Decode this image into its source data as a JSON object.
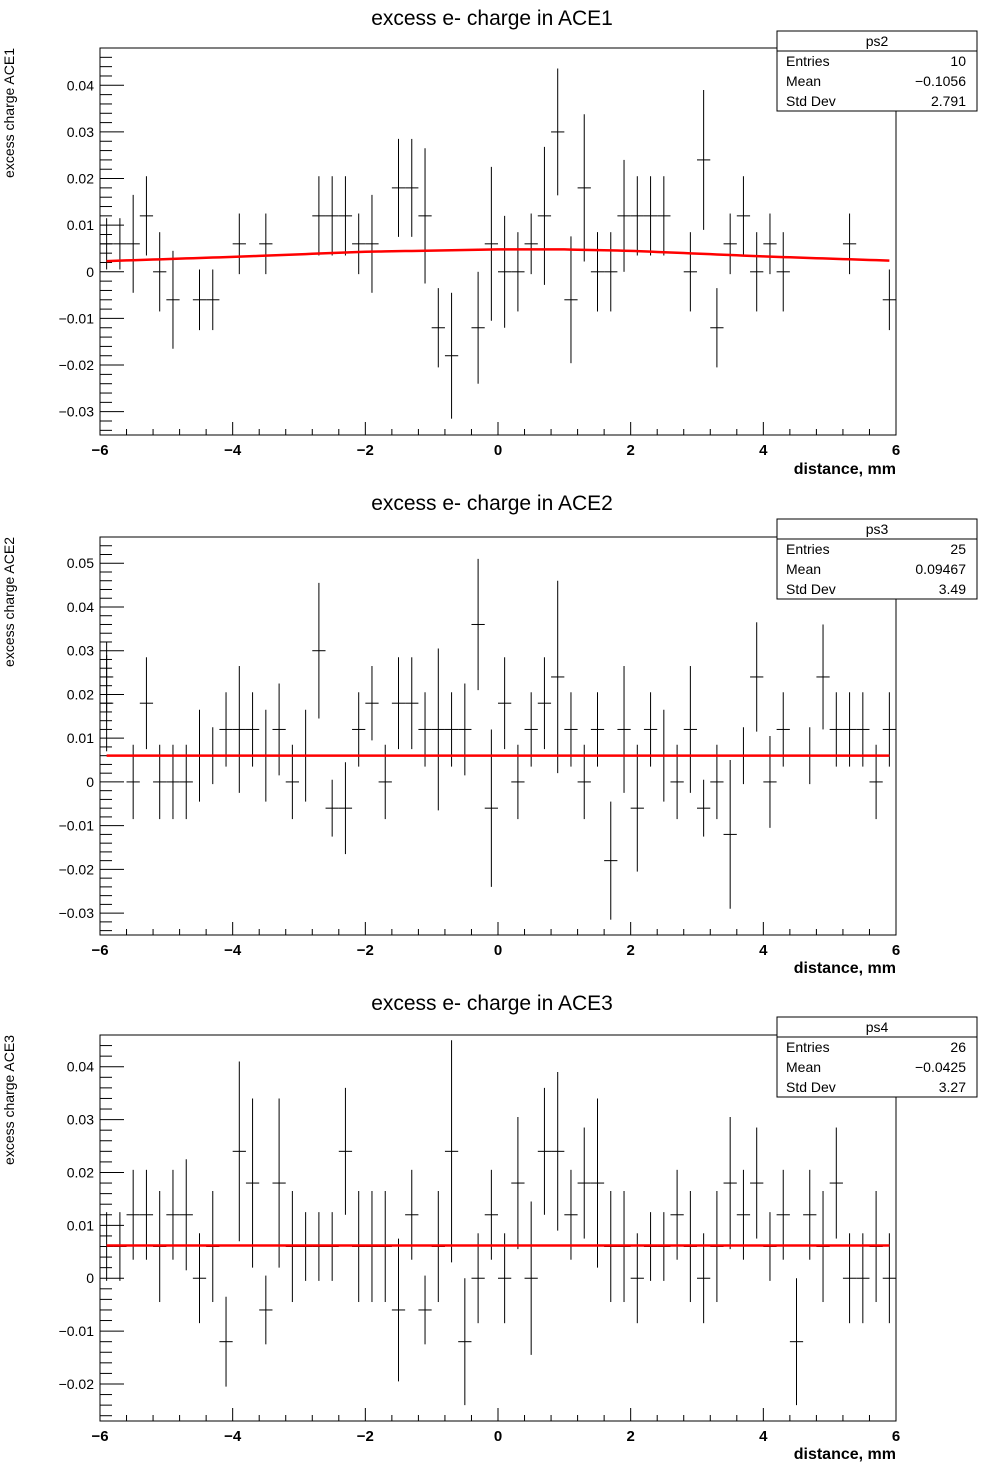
{
  "chart_data": [
    {
      "type": "scatter",
      "title": "excess e- charge in ACE1",
      "xlabel": "distance, mm",
      "ylabel": "excess charge ACE1",
      "xlim": [
        -6,
        6
      ],
      "ylim": [
        -0.035,
        0.048
      ],
      "x_ticks": [
        -6,
        -4,
        -2,
        0,
        2,
        4,
        6
      ],
      "x_tick_labels": [
        "−6",
        "−4",
        "−2",
        "0",
        "2",
        "4",
        "6"
      ],
      "y_ticks": [
        -0.03,
        -0.02,
        -0.01,
        0,
        0.01,
        0.02,
        0.03,
        0.04
      ],
      "y_tick_labels": [
        "−0.03",
        "−0.02",
        "−0.01",
        "0",
        "0.01",
        "0.02",
        "0.03",
        "0.04"
      ],
      "grid": false,
      "legend_position": "top-right",
      "stats": {
        "name": "ps2",
        "rows": [
          {
            "label": "Entries",
            "value": "10"
          },
          {
            "label": "Mean",
            "value": "−0.1056"
          },
          {
            "label": "Std Dev",
            "value": "2.791"
          }
        ]
      },
      "fit": {
        "color": "#ff0000",
        "x": [
          -5.9,
          -4,
          -2,
          0,
          1,
          2,
          4,
          5.9
        ],
        "y": [
          0.0023,
          0.0032,
          0.0043,
          0.0048,
          0.0048,
          0.0045,
          0.0033,
          0.0024
        ]
      },
      "points": [
        {
          "x": -5.9,
          "y": 0.006,
          "err": 0.0055
        },
        {
          "x": -5.7,
          "y": 0.006,
          "err": 0.0055
        },
        {
          "x": -5.5,
          "y": 0.006,
          "err": 0.0105
        },
        {
          "x": -5.3,
          "y": 0.012,
          "err": 0.0085
        },
        {
          "x": -5.1,
          "y": 0.0,
          "err": 0.0085
        },
        {
          "x": -4.9,
          "y": -0.006,
          "err": 0.0105
        },
        {
          "x": -4.5,
          "y": -0.006,
          "err": 0.0065
        },
        {
          "x": -4.3,
          "y": -0.006,
          "err": 0.0065
        },
        {
          "x": -3.9,
          "y": 0.006,
          "err": 0.0065
        },
        {
          "x": -3.5,
          "y": 0.006,
          "err": 0.0065
        },
        {
          "x": -2.7,
          "y": 0.012,
          "err": 0.0085
        },
        {
          "x": -2.5,
          "y": 0.012,
          "err": 0.0085
        },
        {
          "x": -2.3,
          "y": 0.012,
          "err": 0.0085
        },
        {
          "x": -2.1,
          "y": 0.006,
          "err": 0.0065
        },
        {
          "x": -1.9,
          "y": 0.006,
          "err": 0.0105
        },
        {
          "x": -1.5,
          "y": 0.018,
          "err": 0.0105
        },
        {
          "x": -1.3,
          "y": 0.018,
          "err": 0.0105
        },
        {
          "x": -1.1,
          "y": 0.012,
          "err": 0.0145
        },
        {
          "x": -0.9,
          "y": -0.012,
          "err": 0.0085
        },
        {
          "x": -0.7,
          "y": -0.018,
          "err": 0.0135
        },
        {
          "x": -0.3,
          "y": -0.012,
          "err": 0.012
        },
        {
          "x": -0.1,
          "y": 0.006,
          "err": 0.0165
        },
        {
          "x": 0.1,
          "y": 0.0,
          "err": 0.012
        },
        {
          "x": 0.3,
          "y": 0.0,
          "err": 0.0085
        },
        {
          "x": 0.5,
          "y": 0.006,
          "err": 0.0065
        },
        {
          "x": 0.7,
          "y": 0.012,
          "err": 0.0148
        },
        {
          "x": 0.9,
          "y": 0.03,
          "err": 0.0136
        },
        {
          "x": 1.1,
          "y": -0.006,
          "err": 0.0136
        },
        {
          "x": 1.3,
          "y": 0.018,
          "err": 0.0158
        },
        {
          "x": 1.5,
          "y": 0.0,
          "err": 0.0085
        },
        {
          "x": 1.7,
          "y": 0.0,
          "err": 0.0085
        },
        {
          "x": 1.9,
          "y": 0.012,
          "err": 0.012
        },
        {
          "x": 2.1,
          "y": 0.012,
          "err": 0.0085
        },
        {
          "x": 2.3,
          "y": 0.012,
          "err": 0.0085
        },
        {
          "x": 2.5,
          "y": 0.012,
          "err": 0.0085
        },
        {
          "x": 2.9,
          "y": 0.0,
          "err": 0.0085
        },
        {
          "x": 3.1,
          "y": 0.024,
          "err": 0.015
        },
        {
          "x": 3.3,
          "y": -0.012,
          "err": 0.0085
        },
        {
          "x": 3.5,
          "y": 0.006,
          "err": 0.0065
        },
        {
          "x": 3.7,
          "y": 0.012,
          "err": 0.0085
        },
        {
          "x": 3.9,
          "y": 0.0,
          "err": 0.0085
        },
        {
          "x": 4.1,
          "y": 0.006,
          "err": 0.0065
        },
        {
          "x": 4.3,
          "y": 0.0,
          "err": 0.0085
        },
        {
          "x": 5.3,
          "y": 0.006,
          "err": 0.0065
        },
        {
          "x": 5.9,
          "y": -0.006,
          "err": 0.0065
        }
      ]
    },
    {
      "type": "scatter",
      "title": "excess e- charge in ACE2",
      "xlabel": "distance, mm",
      "ylabel": "excess charge ACE2",
      "xlim": [
        -6,
        6
      ],
      "ylim": [
        -0.035,
        0.056
      ],
      "x_ticks": [
        -6,
        -4,
        -2,
        0,
        2,
        4,
        6
      ],
      "x_tick_labels": [
        "−6",
        "−4",
        "−2",
        "0",
        "2",
        "4",
        "6"
      ],
      "y_ticks": [
        -0.03,
        -0.02,
        -0.01,
        0,
        0.01,
        0.02,
        0.03,
        0.04,
        0.05
      ],
      "y_tick_labels": [
        "−0.03",
        "−0.02",
        "−0.01",
        "0",
        "0.01",
        "0.02",
        "0.03",
        "0.04",
        "0.05"
      ],
      "grid": false,
      "legend_position": "top-right",
      "stats": {
        "name": "ps3",
        "rows": [
          {
            "label": "Entries",
            "value": "25"
          },
          {
            "label": "Mean",
            "value": "0.09467"
          },
          {
            "label": "Std Dev",
            "value": "3.49"
          }
        ]
      },
      "fit": {
        "color": "#ff0000",
        "x": [
          -5.9,
          5.9
        ],
        "y": [
          0.006,
          0.006
        ]
      },
      "points": [
        {
          "x": -5.9,
          "y": 0.018,
          "err": 0.011
        },
        {
          "x": -5.9,
          "y": 0.024,
          "err": 0.008
        },
        {
          "x": -5.5,
          "y": 0.0,
          "err": 0.0085
        },
        {
          "x": -5.3,
          "y": 0.018,
          "err": 0.0105
        },
        {
          "x": -5.1,
          "y": 0.0,
          "err": 0.0085
        },
        {
          "x": -4.9,
          "y": 0.0,
          "err": 0.0085
        },
        {
          "x": -4.7,
          "y": 0.0,
          "err": 0.0085
        },
        {
          "x": -4.5,
          "y": 0.006,
          "err": 0.0105
        },
        {
          "x": -4.3,
          "y": 0.006,
          "err": 0.0065
        },
        {
          "x": -4.1,
          "y": 0.012,
          "err": 0.0085
        },
        {
          "x": -3.9,
          "y": 0.012,
          "err": 0.0145
        },
        {
          "x": -3.7,
          "y": 0.012,
          "err": 0.0085
        },
        {
          "x": -3.5,
          "y": 0.006,
          "err": 0.0105
        },
        {
          "x": -3.3,
          "y": 0.012,
          "err": 0.0105
        },
        {
          "x": -3.1,
          "y": 0.0,
          "err": 0.0085
        },
        {
          "x": -2.9,
          "y": 0.006,
          "err": 0.0105
        },
        {
          "x": -2.7,
          "y": 0.03,
          "err": 0.0155
        },
        {
          "x": -2.5,
          "y": -0.006,
          "err": 0.0065
        },
        {
          "x": -2.3,
          "y": -0.006,
          "err": 0.0105
        },
        {
          "x": -2.1,
          "y": 0.012,
          "err": 0.0085
        },
        {
          "x": -1.9,
          "y": 0.018,
          "err": 0.0085
        },
        {
          "x": -1.7,
          "y": 0.0,
          "err": 0.0085
        },
        {
          "x": -1.5,
          "y": 0.018,
          "err": 0.0105
        },
        {
          "x": -1.3,
          "y": 0.018,
          "err": 0.0105
        },
        {
          "x": -1.1,
          "y": 0.012,
          "err": 0.0085
        },
        {
          "x": -0.9,
          "y": 0.012,
          "err": 0.0185
        },
        {
          "x": -0.7,
          "y": 0.012,
          "err": 0.0085
        },
        {
          "x": -0.5,
          "y": 0.012,
          "err": 0.0105
        },
        {
          "x": -0.3,
          "y": 0.036,
          "err": 0.015
        },
        {
          "x": -0.1,
          "y": -0.006,
          "err": 0.018
        },
        {
          "x": 0.1,
          "y": 0.018,
          "err": 0.0105
        },
        {
          "x": 0.3,
          "y": 0.0,
          "err": 0.0085
        },
        {
          "x": 0.5,
          "y": 0.012,
          "err": 0.0085
        },
        {
          "x": 0.7,
          "y": 0.018,
          "err": 0.0105
        },
        {
          "x": 0.9,
          "y": 0.024,
          "err": 0.022
        },
        {
          "x": 1.1,
          "y": 0.012,
          "err": 0.0085
        },
        {
          "x": 1.3,
          "y": 0.0,
          "err": 0.0085
        },
        {
          "x": 1.5,
          "y": 0.012,
          "err": 0.0085
        },
        {
          "x": 1.7,
          "y": -0.018,
          "err": 0.0135
        },
        {
          "x": 1.9,
          "y": 0.012,
          "err": 0.0145
        },
        {
          "x": 2.1,
          "y": -0.006,
          "err": 0.0145
        },
        {
          "x": 2.3,
          "y": 0.012,
          "err": 0.0085
        },
        {
          "x": 2.5,
          "y": 0.006,
          "err": 0.0105
        },
        {
          "x": 2.7,
          "y": 0.0,
          "err": 0.0085
        },
        {
          "x": 2.9,
          "y": 0.012,
          "err": 0.0145
        },
        {
          "x": 3.1,
          "y": -0.006,
          "err": 0.0065
        },
        {
          "x": 3.3,
          "y": 0.0,
          "err": 0.0085
        },
        {
          "x": 3.5,
          "y": -0.012,
          "err": 0.017
        },
        {
          "x": 3.7,
          "y": 0.006,
          "err": 0.0065
        },
        {
          "x": 3.9,
          "y": 0.024,
          "err": 0.0125
        },
        {
          "x": 4.1,
          "y": 0.0,
          "err": 0.0105
        },
        {
          "x": 4.3,
          "y": 0.012,
          "err": 0.0085
        },
        {
          "x": 4.7,
          "y": 0.006,
          "err": 0.0065
        },
        {
          "x": 4.9,
          "y": 0.024,
          "err": 0.012
        },
        {
          "x": 5.1,
          "y": 0.012,
          "err": 0.0085
        },
        {
          "x": 5.3,
          "y": 0.012,
          "err": 0.0085
        },
        {
          "x": 5.5,
          "y": 0.012,
          "err": 0.0085
        },
        {
          "x": 5.7,
          "y": 0.0,
          "err": 0.0085
        },
        {
          "x": 5.9,
          "y": 0.012,
          "err": 0.0085
        }
      ]
    },
    {
      "type": "scatter",
      "title": "excess e- charge in ACE3",
      "xlabel": "distance, mm",
      "ylabel": "excess charge  ACE3",
      "xlim": [
        -6,
        6
      ],
      "ylim": [
        -0.027,
        0.046
      ],
      "x_ticks": [
        -6,
        -4,
        -2,
        0,
        2,
        4,
        6
      ],
      "x_tick_labels": [
        "−6",
        "−4",
        "−2",
        "0",
        "2",
        "4",
        "6"
      ],
      "y_ticks": [
        -0.02,
        -0.01,
        0,
        0.01,
        0.02,
        0.03,
        0.04
      ],
      "y_tick_labels": [
        "−0.02",
        "−0.01",
        "0",
        "0.01",
        "0.02",
        "0.03",
        "0.04"
      ],
      "grid": false,
      "legend_position": "top-right",
      "stats": {
        "name": "ps4",
        "rows": [
          {
            "label": "Entries",
            "value": "26"
          },
          {
            "label": "Mean",
            "value": "−0.0425"
          },
          {
            "label": "Std Dev",
            "value": "3.27"
          }
        ]
      },
      "fit": {
        "color": "#ff0000",
        "x": [
          -5.9,
          5.9
        ],
        "y": [
          0.0062,
          0.0062
        ]
      },
      "points": [
        {
          "x": -5.9,
          "y": 0.006,
          "err": 0.0065
        },
        {
          "x": -5.7,
          "y": 0.006,
          "err": 0.0065
        },
        {
          "x": -5.5,
          "y": 0.012,
          "err": 0.0085
        },
        {
          "x": -5.3,
          "y": 0.012,
          "err": 0.0085
        },
        {
          "x": -5.1,
          "y": 0.006,
          "err": 0.0105
        },
        {
          "x": -4.9,
          "y": 0.012,
          "err": 0.0085
        },
        {
          "x": -4.7,
          "y": 0.012,
          "err": 0.0105
        },
        {
          "x": -4.5,
          "y": 0.0,
          "err": 0.0085
        },
        {
          "x": -4.3,
          "y": 0.006,
          "err": 0.0105
        },
        {
          "x": -4.1,
          "y": -0.012,
          "err": 0.0085
        },
        {
          "x": -3.9,
          "y": 0.024,
          "err": 0.017
        },
        {
          "x": -3.7,
          "y": 0.018,
          "err": 0.016
        },
        {
          "x": -3.5,
          "y": -0.006,
          "err": 0.0065
        },
        {
          "x": -3.3,
          "y": 0.018,
          "err": 0.016
        },
        {
          "x": -3.1,
          "y": 0.006,
          "err": 0.0105
        },
        {
          "x": -2.9,
          "y": 0.006,
          "err": 0.0065
        },
        {
          "x": -2.7,
          "y": 0.006,
          "err": 0.0065
        },
        {
          "x": -2.5,
          "y": 0.006,
          "err": 0.0065
        },
        {
          "x": -2.3,
          "y": 0.024,
          "err": 0.012
        },
        {
          "x": -2.1,
          "y": 0.006,
          "err": 0.0105
        },
        {
          "x": -1.9,
          "y": 0.006,
          "err": 0.0105
        },
        {
          "x": -1.7,
          "y": 0.006,
          "err": 0.0105
        },
        {
          "x": -1.5,
          "y": -0.006,
          "err": 0.0135
        },
        {
          "x": -1.3,
          "y": 0.012,
          "err": 0.0085
        },
        {
          "x": -1.1,
          "y": -0.006,
          "err": 0.0065
        },
        {
          "x": -0.9,
          "y": 0.006,
          "err": 0.0105
        },
        {
          "x": -0.7,
          "y": 0.024,
          "err": 0.021
        },
        {
          "x": -0.5,
          "y": -0.012,
          "err": 0.012
        },
        {
          "x": -0.3,
          "y": 0.0,
          "err": 0.0085
        },
        {
          "x": -0.1,
          "y": 0.012,
          "err": 0.0085
        },
        {
          "x": 0.1,
          "y": 0.0,
          "err": 0.0085
        },
        {
          "x": 0.3,
          "y": 0.018,
          "err": 0.0125
        },
        {
          "x": 0.5,
          "y": 0.0,
          "err": 0.0145
        },
        {
          "x": 0.7,
          "y": 0.024,
          "err": 0.012
        },
        {
          "x": 0.9,
          "y": 0.024,
          "err": 0.015
        },
        {
          "x": 1.1,
          "y": 0.012,
          "err": 0.0085
        },
        {
          "x": 1.3,
          "y": 0.018,
          "err": 0.0105
        },
        {
          "x": 1.5,
          "y": 0.018,
          "err": 0.016
        },
        {
          "x": 1.7,
          "y": 0.006,
          "err": 0.0105
        },
        {
          "x": 1.9,
          "y": 0.006,
          "err": 0.0105
        },
        {
          "x": 2.1,
          "y": 0.0,
          "err": 0.0085
        },
        {
          "x": 2.3,
          "y": 0.006,
          "err": 0.0065
        },
        {
          "x": 2.5,
          "y": 0.006,
          "err": 0.0065
        },
        {
          "x": 2.7,
          "y": 0.012,
          "err": 0.0085
        },
        {
          "x": 2.9,
          "y": 0.006,
          "err": 0.0105
        },
        {
          "x": 3.1,
          "y": 0.0,
          "err": 0.0085
        },
        {
          "x": 3.3,
          "y": 0.006,
          "err": 0.0105
        },
        {
          "x": 3.5,
          "y": 0.018,
          "err": 0.0125
        },
        {
          "x": 3.7,
          "y": 0.012,
          "err": 0.0085
        },
        {
          "x": 3.9,
          "y": 0.018,
          "err": 0.0105
        },
        {
          "x": 4.1,
          "y": 0.006,
          "err": 0.0065
        },
        {
          "x": 4.3,
          "y": 0.012,
          "err": 0.0085
        },
        {
          "x": 4.5,
          "y": -0.012,
          "err": 0.012
        },
        {
          "x": 4.7,
          "y": 0.012,
          "err": 0.0085
        },
        {
          "x": 4.9,
          "y": 0.006,
          "err": 0.0105
        },
        {
          "x": 5.1,
          "y": 0.018,
          "err": 0.0105
        },
        {
          "x": 5.3,
          "y": 0.0,
          "err": 0.0085
        },
        {
          "x": 5.5,
          "y": 0.0,
          "err": 0.0085
        },
        {
          "x": 5.7,
          "y": 0.006,
          "err": 0.0105
        },
        {
          "x": 5.9,
          "y": 0.0,
          "err": 0.0085
        }
      ]
    }
  ]
}
